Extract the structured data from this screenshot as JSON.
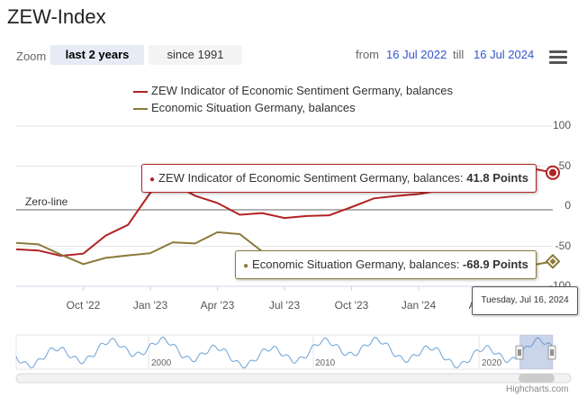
{
  "title": "ZEW-Index",
  "zoom": {
    "label": "Zoom",
    "buttons": [
      {
        "label": "last 2 years",
        "active": true
      },
      {
        "label": "since 1991",
        "active": false
      }
    ]
  },
  "range": {
    "from_label": "from",
    "from_value": "16 Jul 2022",
    "till_label": "till",
    "till_value": "16 Jul 2024"
  },
  "menu_icon": "hamburger-menu-icon",
  "legend": [
    {
      "name": "ZEW Indicator of Economic Sentiment Germany, balances",
      "color": "#b22222"
    },
    {
      "name": "Economic Situation Germany, balances",
      "color": "#8b7a3a"
    }
  ],
  "zero_line_label": "Zero-line",
  "y_ticks": [
    "100",
    "50",
    "0",
    "-50",
    "-100"
  ],
  "x_ticks": [
    "Oct '22",
    "Jan '23",
    "Apr '23",
    "Jul '23",
    "Oct '23",
    "Jan '24",
    "Apr '24"
  ],
  "tooltips": {
    "sentiment": {
      "text": "ZEW Indicator of Economic Sentiment Germany, balances: ",
      "value": "41.8 Points"
    },
    "situation": {
      "text": "Economic Situation Germany, balances: ",
      "value": "-68.9 Points"
    },
    "date": "Tuesday, Jul 16, 2024"
  },
  "navigator": {
    "year_labels": [
      "2000",
      "2010",
      "2020"
    ]
  },
  "credits": "Highcharts.com",
  "chart_data": {
    "type": "line",
    "ylim": [
      -100,
      100
    ],
    "x": [
      "2022-07",
      "2022-08",
      "2022-09",
      "2022-10",
      "2022-11",
      "2022-12",
      "2023-01",
      "2023-02",
      "2023-03",
      "2023-04",
      "2023-05",
      "2023-06",
      "2023-07",
      "2023-08",
      "2023-09",
      "2023-10",
      "2023-11",
      "2023-12",
      "2024-01",
      "2024-02",
      "2024-03",
      "2024-04",
      "2024-05",
      "2024-06",
      "2024-07"
    ],
    "series": [
      {
        "name": "ZEW Indicator of Economic Sentiment Germany, balances",
        "color": "#b22222",
        "values": [
          -53.8,
          -55.3,
          -61.9,
          -59.2,
          -36.7,
          -23.3,
          16.9,
          28.1,
          13.0,
          4.1,
          -10.7,
          -8.5,
          -14.7,
          -12.3,
          -11.4,
          -1.1,
          9.8,
          12.8,
          15.2,
          19.9,
          31.7,
          42.9,
          47.1,
          47.5,
          41.8
        ]
      },
      {
        "name": "Economic Situation Germany, balances",
        "color": "#8b7a3a",
        "values": [
          -45.8,
          -47.6,
          -60.5,
          -72.2,
          -64.5,
          -61.4,
          -58.6,
          -45.1,
          -46.5,
          -32.5,
          -34.8,
          -56.5,
          -59.5,
          -71.3,
          -79.4,
          -79.9,
          -79.8,
          -77.1,
          -77.3,
          -81.7,
          -80.5,
          -79.2,
          -72.3,
          -73.8,
          -68.9
        ]
      }
    ]
  }
}
